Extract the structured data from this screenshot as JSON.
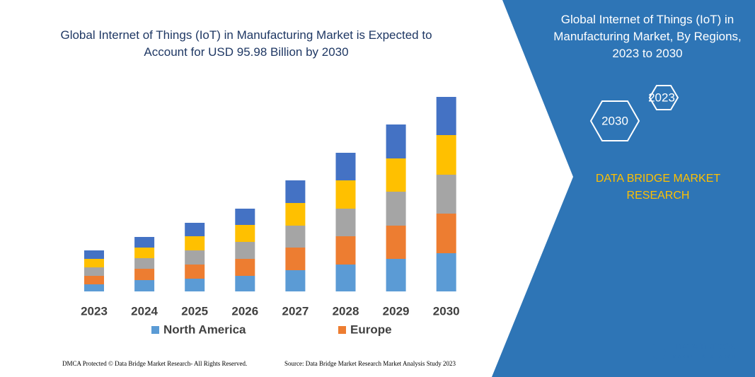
{
  "chart_data": {
    "type": "stacked-bar",
    "title": "Global Internet of Things (IoT) in Manufacturing Market is Expected to Account for USD 95.98 Billion by 2030",
    "categories": [
      "2023",
      "2024",
      "2025",
      "2026",
      "2027",
      "2028",
      "2029",
      "2030"
    ],
    "series": [
      {
        "name": "North America",
        "color": "#5b9bd5",
        "values": [
          10,
          16,
          18,
          22,
          30,
          38,
          46,
          54
        ]
      },
      {
        "name": "Europe",
        "color": "#ed7d31",
        "values": [
          12,
          16,
          20,
          24,
          32,
          40,
          47,
          56
        ]
      },
      {
        "color": "#a5a5a5",
        "values": [
          12,
          15,
          20,
          24,
          31,
          39,
          48,
          55
        ]
      },
      {
        "color": "#ffc000",
        "values": [
          12,
          15,
          20,
          24,
          32,
          40,
          47,
          56
        ]
      },
      {
        "color": "#4472c4",
        "values": [
          12,
          15,
          19,
          23,
          32,
          39,
          48,
          54
        ]
      }
    ]
  },
  "panel": {
    "title": "Global Internet of Things (IoT) in Manufacturing Market, By Regions, 2023 to 2030",
    "years": [
      "2023",
      "2030"
    ],
    "brand": "DATA BRIDGE MARKET RESEARCH"
  },
  "footer": {
    "left": "DMCA Protected © Data Bridge Market Research- All Rights Reserved.",
    "right": "Source: Data Bridge Market Research Market Analysis Study 2023"
  },
  "logo": {
    "name": "DATA BRIDGE",
    "tagline": "MARKET RESEARCH"
  }
}
